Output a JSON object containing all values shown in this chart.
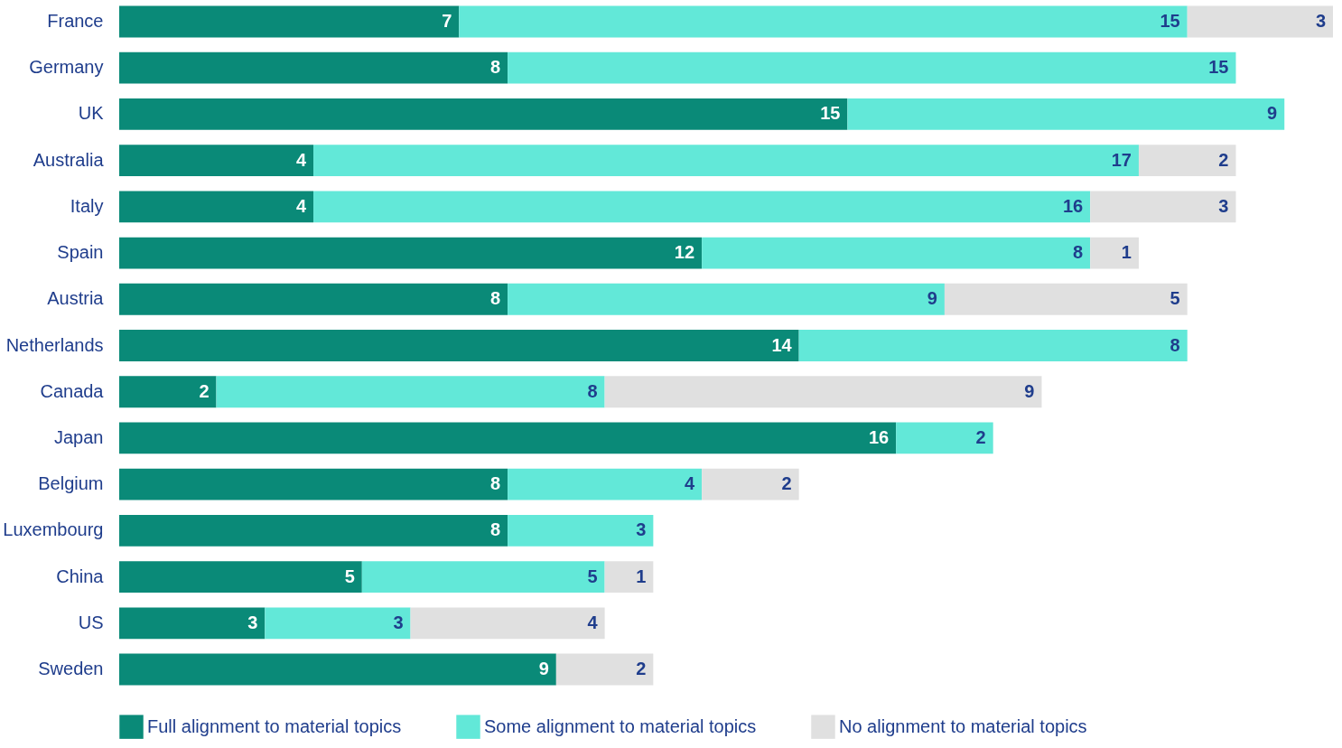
{
  "chart_data": {
    "type": "bar",
    "orientation": "horizontal",
    "stacked": true,
    "data_labels": true,
    "legend": "bottom",
    "grid": false,
    "tick_labels": "y",
    "categories": [
      "France",
      "Germany",
      "UK",
      "Australia",
      "Italy",
      "Spain",
      "Austria",
      "Netherlands",
      "Canada",
      "Japan",
      "Belgium",
      "Luxembourg",
      "China",
      "US",
      "Sweden"
    ],
    "series": [
      {
        "name": "Full alignment to material topics",
        "color": "#0a8a78",
        "values": [
          7,
          8,
          15,
          4,
          4,
          12,
          8,
          14,
          2,
          16,
          8,
          8,
          5,
          3,
          9
        ]
      },
      {
        "name": "Some alignment to material topics",
        "color": "#62e8d8",
        "values": [
          15,
          15,
          9,
          17,
          16,
          8,
          9,
          8,
          8,
          2,
          4,
          3,
          5,
          3,
          null
        ]
      },
      {
        "name": "No alignment to material topics",
        "color": "#e0e0e0",
        "values": [
          3,
          null,
          null,
          2,
          3,
          1,
          5,
          null,
          9,
          null,
          2,
          null,
          1,
          4,
          2
        ]
      }
    ]
  }
}
